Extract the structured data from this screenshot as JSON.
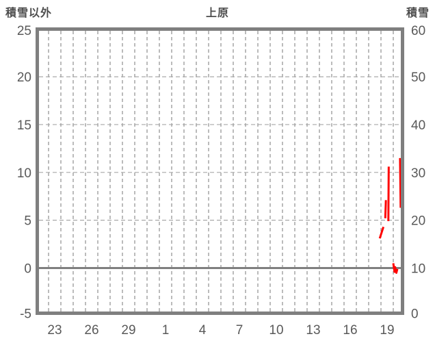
{
  "header": {
    "left_axis_title": "積雪以外",
    "station_title": "上原",
    "right_axis_title": "積雪"
  },
  "colors": {
    "text": "#595959",
    "header_text": "#4d4d4d",
    "border": "#7f7f7f",
    "grid_vertical": "#9e9e9e",
    "grid_horizontal": "#a8a8a8",
    "zero_line": "#7f7f7f",
    "temperature_series": "#ff0000",
    "snow_depth_series": "#7030a0",
    "background": "#ffffff"
  },
  "chart_data": {
    "type": "line",
    "title": "上原",
    "left_axis": {
      "label": "積雪以外",
      "ticks": [
        25,
        20,
        15,
        10,
        5,
        0,
        -5
      ],
      "range": [
        -5,
        25
      ],
      "gridline_values": [
        20,
        15,
        10,
        5
      ],
      "zero_line_value": 0
    },
    "right_axis": {
      "label": "積雪",
      "ticks": [
        60,
        50,
        40,
        30,
        20,
        10,
        0
      ],
      "range": [
        0,
        60
      ]
    },
    "x_axis": {
      "tick_labels": [
        "23",
        "26",
        "29",
        "1",
        "4",
        "7",
        "10",
        "13",
        "16",
        "19"
      ],
      "days_shown": 30,
      "gridline_interval_days": 1,
      "label_interval_days": 3,
      "first_gridline_day_offset": 1,
      "first_label_day_offset": 1.5
    },
    "grid": true,
    "legend": "none",
    "series": [
      {
        "name": "積雪以外",
        "axis": "left",
        "color": "#ff0000",
        "style": "solid",
        "strokes": [
          [
            [
              27.9,
              3.1
            ],
            [
              28.2,
              4.3
            ]
          ],
          [
            [
              28.35,
              5.2
            ],
            [
              28.4,
              7.1
            ]
          ],
          [
            [
              28.6,
              4.9
            ],
            [
              28.63,
              10.6
            ]
          ],
          [
            [
              29.0,
              0.5
            ],
            [
              29.1,
              -0.4
            ],
            [
              29.15,
              0.1
            ],
            [
              29.25,
              -0.5
            ],
            [
              29.33,
              -0.1
            ]
          ],
          [
            [
              29.55,
              11.5
            ],
            [
              29.6,
              6.3
            ]
          ]
        ]
      },
      {
        "name": "積雪",
        "axis": "right",
        "color": "#7030a0",
        "style": "dashed",
        "strokes": [
          [
            [
              27.7,
              0
            ],
            [
              29.75,
              0
            ]
          ]
        ]
      }
    ]
  }
}
